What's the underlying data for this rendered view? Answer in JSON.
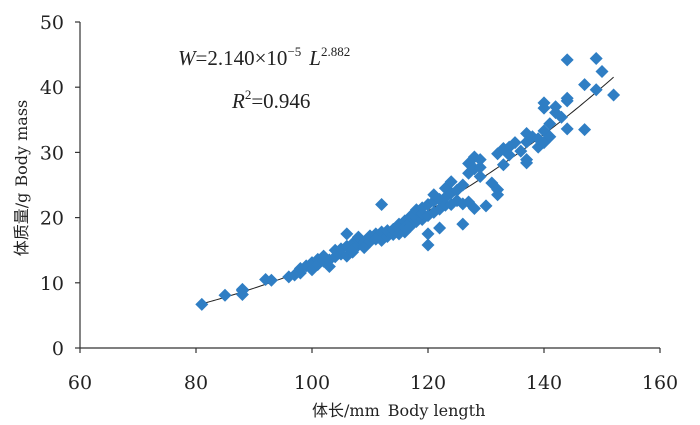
{
  "chart_data": {
    "type": "scatter",
    "xlabel_cn": "体长/mm",
    "xlabel_en": "Body length",
    "ylabel_cn": "体质量/g",
    "ylabel_en": "Body mass",
    "xlim": [
      60,
      160
    ],
    "ylim": [
      0,
      50
    ],
    "x_ticks": [
      "60",
      "80",
      "100",
      "120",
      "140",
      "160"
    ],
    "y_ticks": [
      "0",
      "10",
      "20",
      "30",
      "40",
      "50"
    ],
    "grid": false,
    "legend": "none",
    "marker": "diamond",
    "marker_color": "#2f7ec4",
    "trend_color": "#222222",
    "equation": {
      "w": "W",
      "eq": "=2.140×10",
      "exp": "−5",
      "l": "L",
      "lexp": "2.882",
      "r": "R",
      "r_sup": "2",
      "r_val": "=0.946"
    },
    "trendline": {
      "type": "power",
      "a": 2.14e-05,
      "b": 2.882,
      "x_range": [
        81,
        152
      ]
    },
    "points": [
      [
        81,
        6.7
      ],
      [
        85,
        8.1
      ],
      [
        88,
        8.2
      ],
      [
        88,
        9.0
      ],
      [
        88,
        8.8
      ],
      [
        92,
        10.5
      ],
      [
        93,
        10.4
      ],
      [
        96,
        10.9
      ],
      [
        97,
        11.2
      ],
      [
        98,
        11.5
      ],
      [
        98,
        12.2
      ],
      [
        99,
        12.6
      ],
      [
        100,
        12.0
      ],
      [
        100,
        13.1
      ],
      [
        101,
        13.6
      ],
      [
        101,
        12.8
      ],
      [
        102,
        13.3
      ],
      [
        102,
        14.1
      ],
      [
        103,
        12.5
      ],
      [
        103,
        13.5
      ],
      [
        104,
        14.0
      ],
      [
        104,
        15.0
      ],
      [
        105,
        14.4
      ],
      [
        105,
        15.2
      ],
      [
        106,
        14.1
      ],
      [
        106,
        15.6
      ],
      [
        106,
        17.5
      ],
      [
        107,
        14.7
      ],
      [
        107,
        16.0
      ],
      [
        107,
        15.1
      ],
      [
        108,
        15.8
      ],
      [
        108,
        16.6
      ],
      [
        108,
        17.0
      ],
      [
        109,
        16.2
      ],
      [
        109,
        15.4
      ],
      [
        110,
        16.3
      ],
      [
        110,
        17.2
      ],
      [
        111,
        17.5
      ],
      [
        111,
        16.7
      ],
      [
        112,
        17.8
      ],
      [
        112,
        22.0
      ],
      [
        112,
        16.5
      ],
      [
        113,
        17.1
      ],
      [
        113,
        18.0
      ],
      [
        114,
        17.4
      ],
      [
        114,
        18.2
      ],
      [
        115,
        17.5
      ],
      [
        115,
        19.0
      ],
      [
        115,
        18.3
      ],
      [
        116,
        17.8
      ],
      [
        116,
        19.5
      ],
      [
        116,
        18.5
      ],
      [
        117,
        18.7
      ],
      [
        117,
        19.3
      ],
      [
        117,
        20.2
      ],
      [
        118,
        19.4
      ],
      [
        118,
        20.0
      ],
      [
        118,
        21.2
      ],
      [
        119,
        19.7
      ],
      [
        119,
        20.6
      ],
      [
        119,
        21.5
      ],
      [
        120,
        15.8
      ],
      [
        120,
        17.5
      ],
      [
        120,
        20.3
      ],
      [
        120,
        22.0
      ],
      [
        121,
        20.8
      ],
      [
        121,
        22.5
      ],
      [
        121,
        23.5
      ],
      [
        122,
        18.4
      ],
      [
        122,
        21.3
      ],
      [
        122,
        22.8
      ],
      [
        123,
        21.9
      ],
      [
        123,
        23.1
      ],
      [
        123,
        24.5
      ],
      [
        124,
        22.0
      ],
      [
        124,
        23.8
      ],
      [
        124,
        25.5
      ],
      [
        125,
        22.6
      ],
      [
        125,
        24.2
      ],
      [
        126,
        19.0
      ],
      [
        126,
        22.1
      ],
      [
        126,
        25.0
      ],
      [
        127,
        26.8
      ],
      [
        127,
        22.4
      ],
      [
        127,
        28.3
      ],
      [
        128,
        27.5
      ],
      [
        128,
        21.4
      ],
      [
        128,
        29.3
      ],
      [
        129,
        26.3
      ],
      [
        129,
        27.7
      ],
      [
        129,
        28.9
      ],
      [
        130,
        21.8
      ],
      [
        131,
        25.3
      ],
      [
        132,
        24.3
      ],
      [
        132,
        23.5
      ],
      [
        132,
        29.8
      ],
      [
        133,
        28.1
      ],
      [
        133,
        30.6
      ],
      [
        134,
        30.8
      ],
      [
        134,
        29.6
      ],
      [
        135,
        31.5
      ],
      [
        136,
        30.2
      ],
      [
        137,
        28.4
      ],
      [
        137,
        28.9
      ],
      [
        137,
        31.6
      ],
      [
        137,
        32.9
      ],
      [
        138,
        32.4
      ],
      [
        139,
        30.8
      ],
      [
        139,
        32.1
      ],
      [
        140,
        31.5
      ],
      [
        140,
        33.3
      ],
      [
        140,
        36.8
      ],
      [
        140,
        37.6
      ],
      [
        141,
        34.4
      ],
      [
        141,
        32.4
      ],
      [
        142,
        36.1
      ],
      [
        142,
        37.0
      ],
      [
        143,
        35.4
      ],
      [
        144,
        33.6
      ],
      [
        144,
        37.9
      ],
      [
        144,
        38.3
      ],
      [
        144,
        44.2
      ],
      [
        147,
        33.5
      ],
      [
        147,
        40.4
      ],
      [
        149,
        39.6
      ],
      [
        149,
        44.4
      ],
      [
        150,
        42.4
      ],
      [
        152,
        38.8
      ]
    ]
  }
}
